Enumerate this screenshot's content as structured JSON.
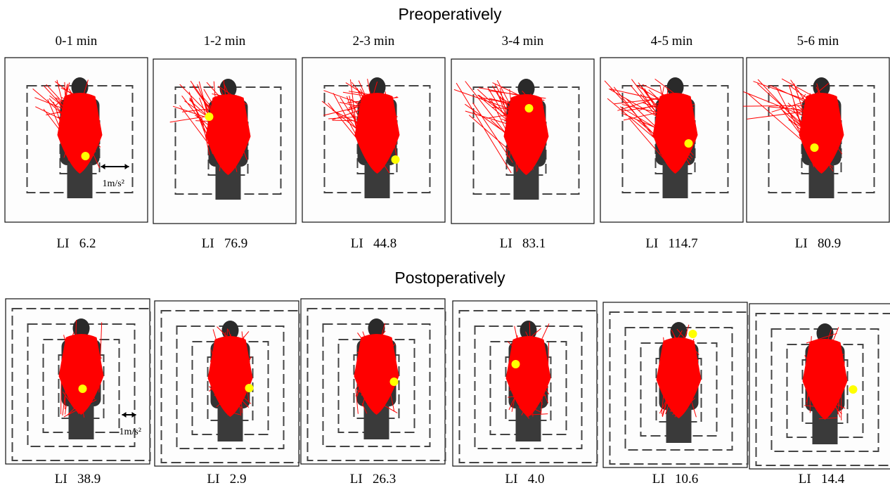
{
  "preoperative": {
    "title": "Preoperatively",
    "panels": [
      {
        "time": "0-1 min",
        "li": "LI   6.2"
      },
      {
        "time": "1-2 min",
        "li": "LI   76.9"
      },
      {
        "time": "2-3 min",
        "li": "LI   44.8"
      },
      {
        "time": "3-4 min",
        "li": "LI   83.1"
      },
      {
        "time": "4-5 min",
        "li": "LI   114.7"
      },
      {
        "time": "5-6 min",
        "li": "LI   80.9"
      }
    ],
    "scale_label": "1m/s²"
  },
  "postoperative": {
    "title": "Postoperatively",
    "panels": [
      {
        "li": "LI   38.9"
      },
      {
        "li": "LI   2.9"
      },
      {
        "li": "LI   26.3"
      },
      {
        "li": "LI   4.0"
      },
      {
        "li": "LI   10.6"
      },
      {
        "li": "LI   14.4"
      }
    ],
    "scale_label": "1m/s²"
  }
}
